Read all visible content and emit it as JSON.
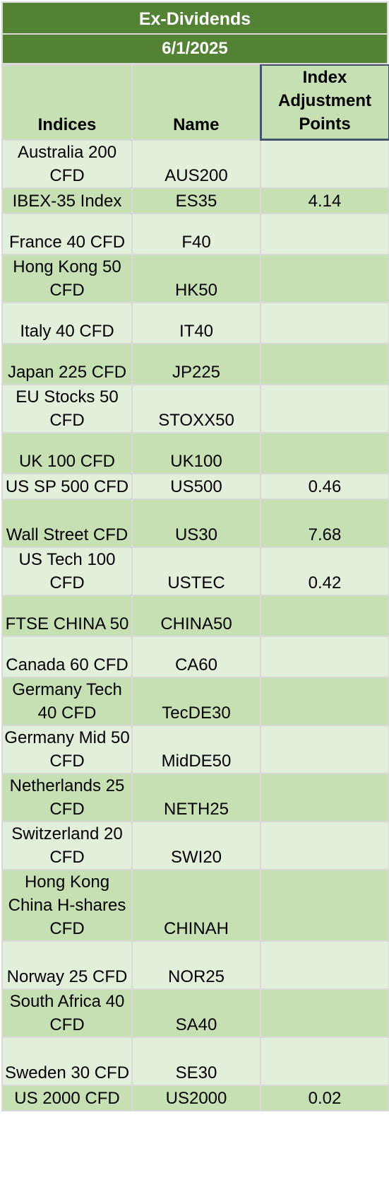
{
  "title": "Ex-Dividends",
  "date": "6/1/2025",
  "columns": {
    "indices": "Indices",
    "name": "Name",
    "adjustment": "Index Adjustment Points"
  },
  "rows": [
    {
      "index": "Australia 200 CFD",
      "name": "AUS200",
      "points": ""
    },
    {
      "index": "IBEX-35 Index",
      "name": "ES35",
      "points": "4.14"
    },
    {
      "index": "France 40 CFD",
      "name": "F40",
      "points": ""
    },
    {
      "index": "Hong Kong 50 CFD",
      "name": "HK50",
      "points": ""
    },
    {
      "index": "Italy 40 CFD",
      "name": "IT40",
      "points": ""
    },
    {
      "index": "Japan 225 CFD",
      "name": "JP225",
      "points": ""
    },
    {
      "index": "EU Stocks 50 CFD",
      "name": "STOXX50",
      "points": ""
    },
    {
      "index": "UK 100 CFD",
      "name": "UK100",
      "points": ""
    },
    {
      "index": "US SP 500 CFD",
      "name": "US500",
      "points": "0.46"
    },
    {
      "index": "Wall Street CFD",
      "name": "US30",
      "points": "7.68"
    },
    {
      "index": "US Tech 100 CFD",
      "name": "USTEC",
      "points": "0.42"
    },
    {
      "index": "FTSE CHINA 50",
      "name": "CHINA50",
      "points": ""
    },
    {
      "index": "Canada 60 CFD",
      "name": "CA60",
      "points": ""
    },
    {
      "index": "Germany Tech 40 CFD",
      "name": "TecDE30",
      "points": ""
    },
    {
      "index": "Germany Mid 50 CFD",
      "name": "MidDE50",
      "points": ""
    },
    {
      "index": "Netherlands 25 CFD",
      "name": "NETH25",
      "points": ""
    },
    {
      "index": "Switzerland 20 CFD",
      "name": "SWI20",
      "points": ""
    },
    {
      "index": "Hong Kong China H-shares CFD",
      "name": "CHINAH",
      "points": ""
    },
    {
      "index": "Norway 25 CFD",
      "name": "NOR25",
      "points": ""
    },
    {
      "index": "South Africa 40 CFD",
      "name": "SA40",
      "points": ""
    },
    {
      "index": "Sweden 30 CFD",
      "name": "SE30",
      "points": ""
    },
    {
      "index": "US 2000 CFD",
      "name": "US2000",
      "points": "0.02"
    }
  ]
}
